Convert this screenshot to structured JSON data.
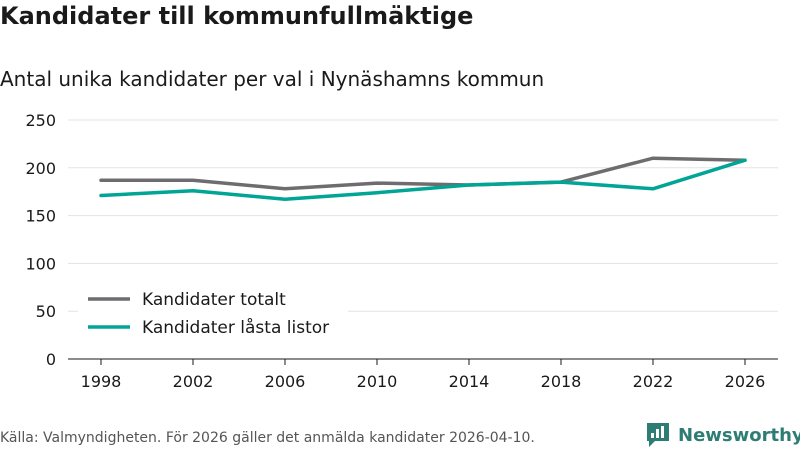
{
  "header": {
    "title": "Kandidater till kommunfullmäktige",
    "subtitle": "Antal unika kandidater per val i Nynäshamns kommun"
  },
  "footer": {
    "source": "Källa: Valmyndigheten. För 2026 gäller det anmälda kandidater 2026-04-10.",
    "brand": "Newsworthy"
  },
  "colors": {
    "totalt": "#6f6c70",
    "lasta": "#00a596",
    "brand": "#2e7d74"
  },
  "chart_data": {
    "type": "line",
    "title": "Kandidater till kommunfullmäktige",
    "subtitle": "Antal unika kandidater per val i Nynäshamns kommun",
    "x": [
      "1998",
      "2002",
      "2006",
      "2010",
      "2014",
      "2018",
      "2022",
      "2026"
    ],
    "ylim": [
      0,
      250
    ],
    "yticks": [
      0,
      50,
      100,
      150,
      200,
      250
    ],
    "grid": true,
    "legend_position": "lower-left",
    "series": [
      {
        "name": "Kandidater totalt",
        "color": "#6f6c70",
        "values": [
          187,
          187,
          178,
          184,
          182,
          185,
          210,
          208
        ]
      },
      {
        "name": "Kandidater låsta listor",
        "color": "#00a596",
        "values": [
          171,
          176,
          167,
          174,
          182,
          185,
          178,
          208
        ]
      }
    ]
  }
}
